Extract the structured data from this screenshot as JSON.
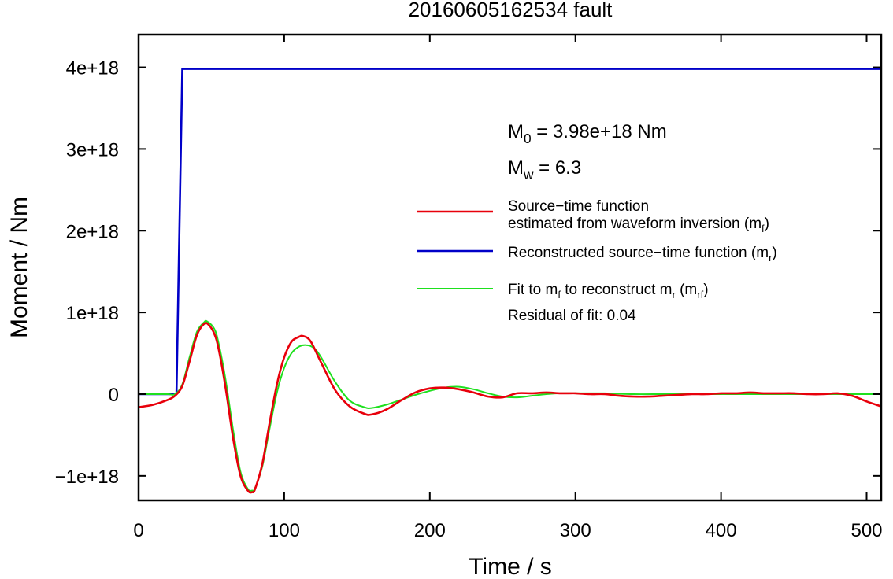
{
  "chart_data": {
    "type": "line",
    "title": "20160605162534 fault",
    "xlabel": "Time / s",
    "ylabel": "Moment / Nm",
    "xlim": [
      0,
      510
    ],
    "ylim": [
      -1.3e+18,
      4.4e+18
    ],
    "x_ticks": [
      {
        "value": 0,
        "label": "0"
      },
      {
        "value": 100,
        "label": "100"
      },
      {
        "value": 200,
        "label": "200"
      },
      {
        "value": 300,
        "label": "300"
      },
      {
        "value": 400,
        "label": "400"
      },
      {
        "value": 500,
        "label": "500"
      }
    ],
    "y_ticks": [
      {
        "value": -1e+18,
        "label": "−1e+18"
      },
      {
        "value": 0,
        "label": "0"
      },
      {
        "value": 1e+18,
        "label": "1e+18"
      },
      {
        "value": 2e+18,
        "label": "2e+18"
      },
      {
        "value": 3e+18,
        "label": "3e+18"
      },
      {
        "value": 4e+18,
        "label": "4e+18"
      }
    ],
    "grid": false,
    "legend_position": "right",
    "annotations": {
      "m0": {
        "symbol": "M",
        "sub": "0",
        "text": " = 3.98e+18 Nm"
      },
      "mw": {
        "symbol": "M",
        "sub": "w",
        "text": " = 6.3"
      },
      "residual": "Residual of fit: 0.04"
    },
    "series": [
      {
        "key": "red",
        "legend_lines": [
          {
            "parts": [
              {
                "t": "Source−time function"
              }
            ]
          },
          {
            "parts": [
              {
                "t": "estimated from waveform inversion (m"
              },
              {
                "sub": "f"
              },
              {
                "t": ")"
              }
            ]
          }
        ],
        "color": "#e8000b",
        "x": [
          0,
          10,
          20,
          25,
          30,
          35,
          40,
          45,
          48,
          52,
          55,
          60,
          65,
          70,
          75,
          78,
          80,
          85,
          90,
          95,
          100,
          105,
          110,
          113,
          118,
          125,
          135,
          145,
          155,
          160,
          170,
          180,
          190,
          200,
          210,
          220,
          230,
          240,
          250,
          260,
          270,
          280,
          290,
          300,
          310,
          320,
          330,
          340,
          350,
          360,
          370,
          380,
          390,
          400,
          410,
          420,
          430,
          440,
          450,
          460,
          470,
          480,
          490,
          500,
          510
        ],
        "y": [
          -1.6e+17,
          -1.3e+17,
          -7e+16,
          -2e+16,
          1e+17,
          4e+17,
          7.2e+17,
          8.6e+17,
          8.5e+17,
          7.4e+17,
          5.5e+17,
          5e+16,
          -5.5e+17,
          -1e+18,
          -1.18e+18,
          -1.2e+18,
          -1.16e+18,
          -8.5e+17,
          -3.5e+17,
          1.2e+17,
          4.5e+17,
          6.4e+17,
          7e+17,
          7.1e+17,
          6.5e+17,
          4e+17,
          5e+16,
          -1.5e+17,
          -2.4e+17,
          -2.5e+17,
          -1.9e+17,
          -8e+16,
          2e+16,
          7e+16,
          8e+16,
          6e+16,
          2e+16,
          -3e+16,
          -4e+16,
          1e+16,
          1e+16,
          2e+16,
          1e+16,
          1e+16,
          0.0,
          0.0,
          -2e+16,
          -3e+16,
          -3e+16,
          -2e+16,
          -1e+16,
          0.0,
          0.0,
          1e+16,
          1e+16,
          2e+16,
          1e+16,
          1e+16,
          1e+16,
          0.0,
          0.0,
          1e+16,
          -2e+16,
          -9e+16,
          -1.5e+17
        ]
      },
      {
        "key": "blue",
        "legend_lines": [
          {
            "parts": [
              {
                "t": "Reconstructed source−time function (m"
              },
              {
                "sub": "r"
              },
              {
                "t": ")"
              }
            ]
          }
        ],
        "color": "#0000c8",
        "x": [
          0,
          26,
          28,
          30,
          510
        ],
        "y": [
          0,
          0,
          2e+18,
          3.98e+18,
          3.98e+18
        ]
      },
      {
        "key": "green",
        "legend_lines": [
          {
            "parts": [
              {
                "t": "Fit to m"
              },
              {
                "sub": "f"
              },
              {
                "t": " to reconstruct m"
              },
              {
                "sub": "r"
              },
              {
                "t": " (m"
              },
              {
                "sub": "rf"
              },
              {
                "t": ")"
              }
            ]
          }
        ],
        "color": "#1ee01e",
        "x": [
          0,
          10,
          20,
          25,
          30,
          35,
          40,
          45,
          47,
          52,
          55,
          60,
          65,
          70,
          75,
          78,
          80,
          85,
          90,
          95,
          100,
          105,
          110,
          115,
          120,
          125,
          135,
          145,
          155,
          160,
          170,
          180,
          190,
          200,
          210,
          220,
          230,
          240,
          250,
          260,
          270,
          280,
          290,
          300,
          320,
          340,
          360,
          380,
          400,
          420,
          440,
          460,
          480,
          500,
          510
        ],
        "y": [
          0,
          0,
          0,
          0,
          1.2e+17,
          4.5e+17,
          7.6e+17,
          8.8e+17,
          8.9e+17,
          8e+17,
          6.2e+17,
          1.5e+17,
          -4.5e+17,
          -9.5e+17,
          -1.16e+18,
          -1.18e+18,
          -1.15e+18,
          -8.8e+17,
          -4.2e+17,
          2e+16,
          3.2e+17,
          5e+17,
          5.8e+17,
          6e+17,
          5.7e+17,
          4.6e+17,
          1.5e+17,
          -8e+16,
          -1.6e+17,
          -1.7e+17,
          -1.3e+17,
          -7e+16,
          -1e+16,
          4e+16,
          8e+16,
          9e+16,
          6e+16,
          1e+16,
          -3e+16,
          -4e+16,
          -2e+16,
          0.0,
          1e+16,
          1e+16,
          1e+16,
          0.0,
          0.0,
          0.0,
          0.0,
          0.0,
          0.0,
          0.0,
          0.0,
          0.0,
          0.0
        ]
      }
    ]
  }
}
